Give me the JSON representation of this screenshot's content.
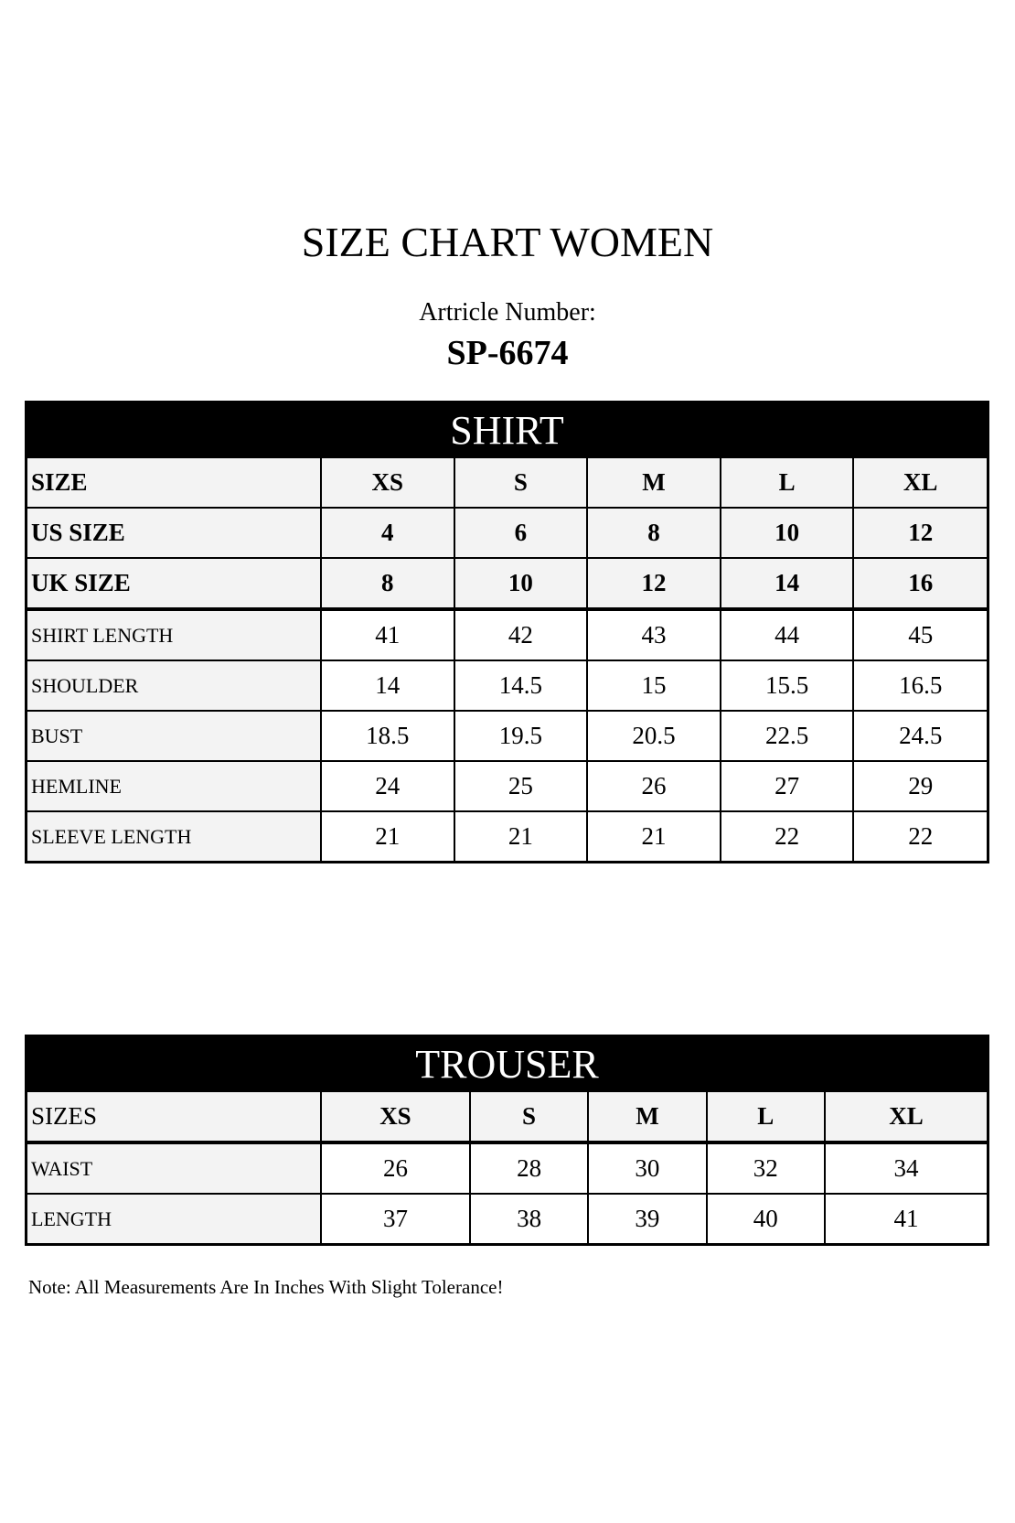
{
  "title": "SIZE CHART WOMEN",
  "article_label": "Artricle Number:",
  "article_number": "SP-6674",
  "shirt": {
    "heading": "SHIRT",
    "columns": [
      "SIZE",
      "XS",
      "S",
      "M",
      "L",
      "XL"
    ],
    "rows": [
      {
        "label": "US SIZE",
        "values": [
          "4",
          "6",
          "8",
          "10",
          "12"
        ]
      },
      {
        "label": "UK SIZE",
        "values": [
          "8",
          "10",
          "12",
          "14",
          "16"
        ]
      },
      {
        "label": "SHIRT LENGTH",
        "values": [
          "41",
          "42",
          "43",
          "44",
          "45"
        ]
      },
      {
        "label": "SHOULDER",
        "values": [
          "14",
          "14.5",
          "15",
          "15.5",
          "16.5"
        ]
      },
      {
        "label": "BUST",
        "values": [
          "18.5",
          "19.5",
          "20.5",
          "22.5",
          "24.5"
        ]
      },
      {
        "label": "HEMLINE",
        "values": [
          "24",
          "25",
          "26",
          "27",
          "29"
        ]
      },
      {
        "label": "SLEEVE LENGTH",
        "values": [
          "21",
          "21",
          "21",
          "22",
          "22"
        ]
      }
    ]
  },
  "trouser": {
    "heading": "TROUSER",
    "columns": [
      "SIZES",
      "XS",
      "S",
      "M",
      "L",
      "XL"
    ],
    "rows": [
      {
        "label": "WAIST",
        "values": [
          "26",
          "28",
          "30",
          "32",
          "34"
        ]
      },
      {
        "label": "LENGTH",
        "values": [
          "37",
          "38",
          "39",
          "40",
          "41"
        ]
      }
    ]
  },
  "note": "Note: All Measurements Are In Inches With Slight Tolerance!"
}
